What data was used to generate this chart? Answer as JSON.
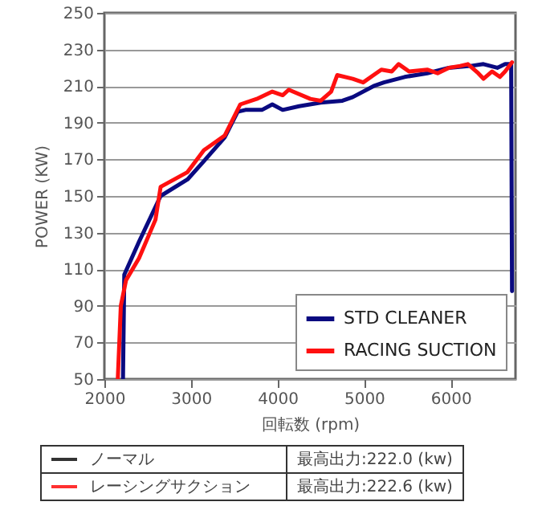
{
  "chart_data": {
    "type": "line",
    "xlabel": "回転数 (rpm)",
    "ylabel": "POWER (KW)",
    "xlim": [
      2000,
      6750
    ],
    "xticks": [
      2000,
      3000,
      4000,
      5000,
      6000
    ],
    "ylim": [
      50,
      250
    ],
    "yticks": [
      50,
      70,
      90,
      110,
      130,
      150,
      170,
      190,
      210,
      230,
      250
    ],
    "grid": "y",
    "legend": "bottom right",
    "line_style": "solid",
    "series": [
      {
        "name": "STD CLEANER",
        "color": "#0a0a80",
        "x": [
          2215,
          2230,
          2400,
          2650,
          2960,
          3150,
          3390,
          3540,
          3630,
          3820,
          3940,
          4060,
          4250,
          4500,
          4750,
          4870,
          5110,
          5230,
          5470,
          5730,
          5980,
          6230,
          6380,
          6540,
          6630,
          6700,
          6710
        ],
        "values": [
          50,
          107,
          125,
          150,
          159,
          169,
          182,
          196,
          197,
          197,
          200,
          197,
          199,
          201,
          202,
          204,
          210,
          212,
          215,
          217,
          220,
          221,
          222,
          220,
          222,
          222,
          98
        ]
      },
      {
        "name": "RACING SUCTION",
        "color": "#ff1010",
        "x": [
          2155,
          2190,
          2250,
          2400,
          2590,
          2650,
          2960,
          3150,
          3390,
          3570,
          3760,
          3940,
          4060,
          4130,
          4380,
          4500,
          4620,
          4690,
          4870,
          4990,
          5110,
          5200,
          5320,
          5400,
          5520,
          5730,
          5850,
          5980,
          6110,
          6200,
          6320,
          6380,
          6480,
          6570,
          6630,
          6710
        ],
        "values": [
          50,
          90,
          104,
          116,
          137,
          155,
          163,
          175,
          183,
          200,
          203,
          207,
          205,
          208,
          203,
          202,
          207,
          216,
          214,
          212,
          216,
          219,
          218,
          222,
          218,
          219,
          217,
          220,
          221,
          222,
          217,
          214,
          218,
          215,
          218,
          223
        ]
      }
    ],
    "annotations": [
      "ノーマル",
      "最高出力:222.0 (kw)",
      "レーシングサクション",
      "最高出力:222.6 (kw)"
    ]
  }
}
